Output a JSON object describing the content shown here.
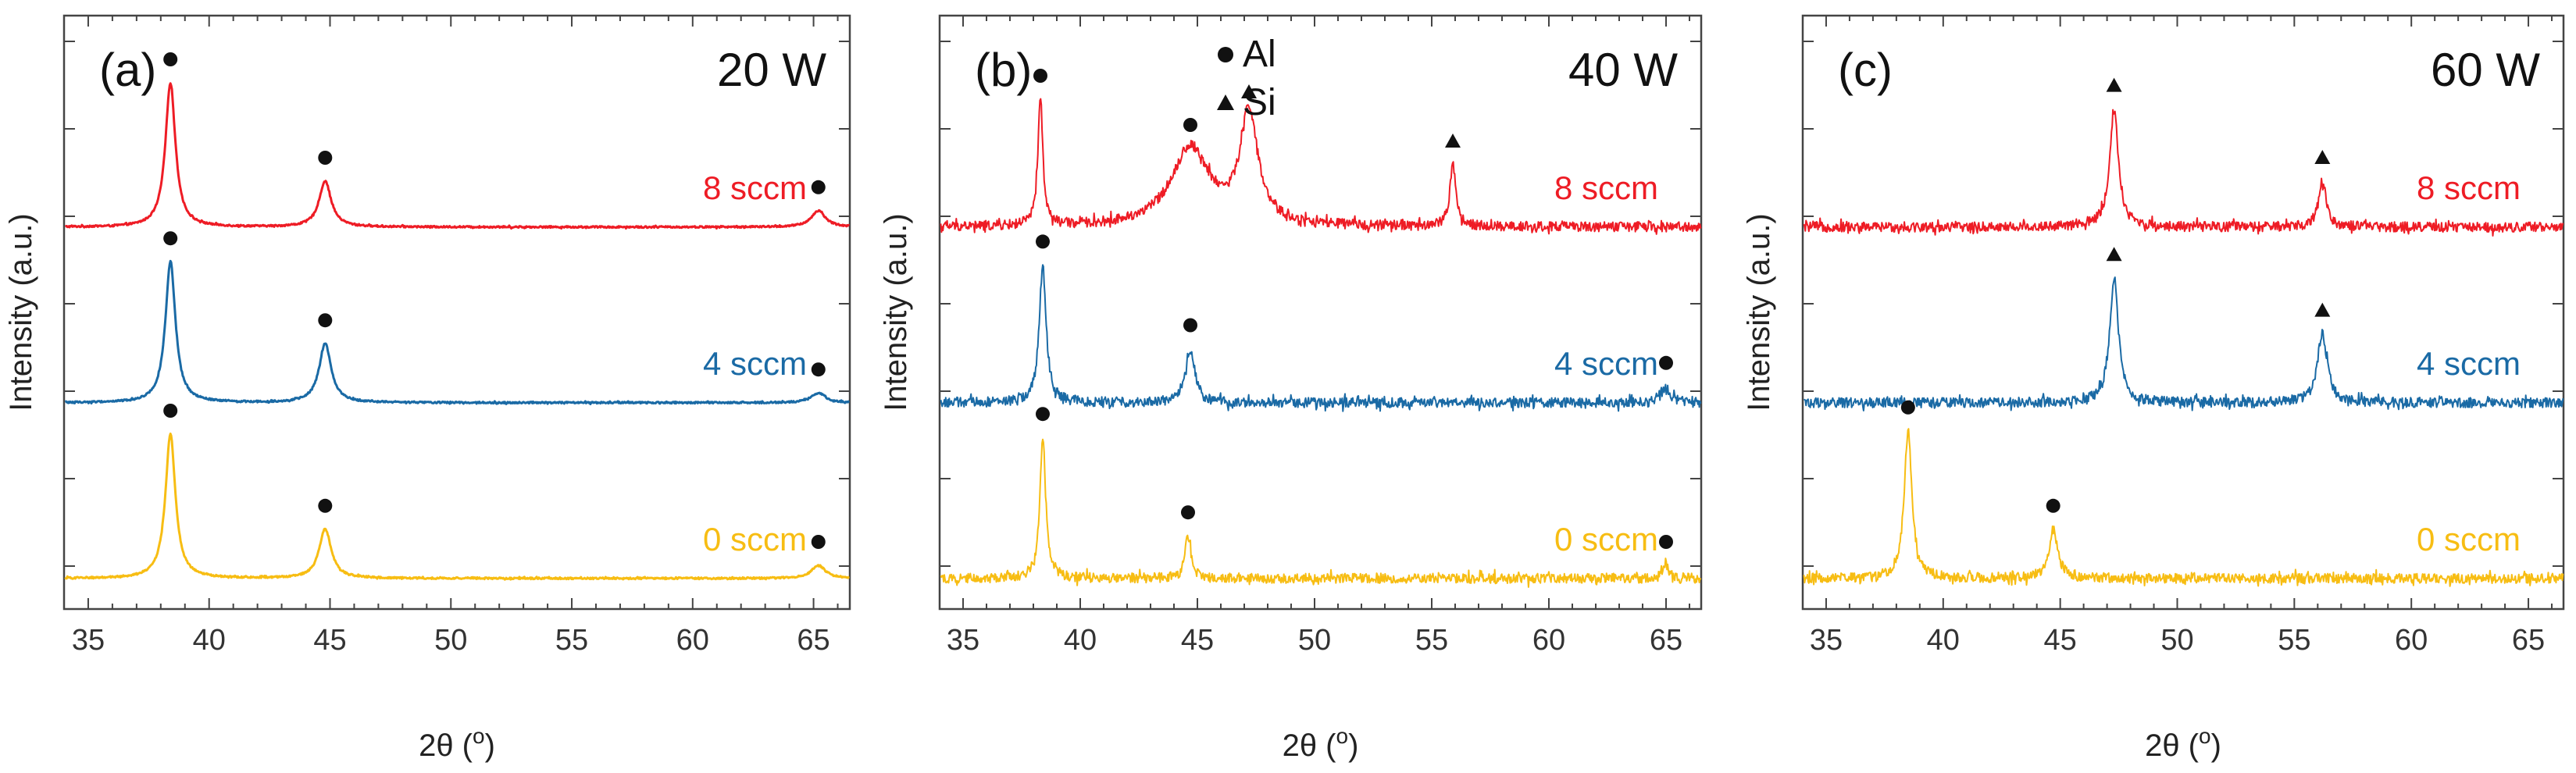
{
  "figure": {
    "x_label_prefix": "2θ (",
    "x_label_sup": "o",
    "x_label_suffix": ")",
    "y_label": "Intensity (a.u.)"
  },
  "legend": [
    {
      "symbol": "circle",
      "label": "Al"
    },
    {
      "symbol": "triangle",
      "label": "Si"
    }
  ],
  "colors": {
    "8 sccm": "#ee1c25",
    "4 sccm": "#1a6aa5",
    "0 sccm": "#f7bd13",
    "marker": "#111111",
    "frame": "#444444"
  },
  "chart_data": [
    {
      "type": "line",
      "panel_label": "(a)",
      "power": "20 W",
      "xlim": [
        34,
        66.5
      ],
      "xticks": [
        35,
        40,
        45,
        50,
        55,
        60,
        65
      ],
      "xlabel": "2θ (o)",
      "ylabel": "Intensity (a.u.)",
      "y_ticks": "unlabeled",
      "noise": "low",
      "series": [
        {
          "name": "8 sccm",
          "color": "#ee1c25",
          "offset": 2.0,
          "peaks": [
            {
              "x": 38.4,
              "height": 0.88,
              "width": 0.5,
              "phase": "Al"
            },
            {
              "x": 44.8,
              "height": 0.28,
              "width": 0.6,
              "phase": "Al"
            },
            {
              "x": 65.2,
              "height": 0.1,
              "width": 0.7,
              "phase": "Al"
            }
          ]
        },
        {
          "name": "4 sccm",
          "color": "#1a6aa5",
          "offset": 1.0,
          "peaks": [
            {
              "x": 38.4,
              "height": 0.86,
              "width": 0.5,
              "phase": "Al"
            },
            {
              "x": 44.8,
              "height": 0.36,
              "width": 0.6,
              "phase": "Al"
            },
            {
              "x": 65.2,
              "height": 0.06,
              "width": 0.7,
              "phase": "Al"
            }
          ]
        },
        {
          "name": "0 sccm",
          "color": "#f7bd13",
          "offset": 0.0,
          "peaks": [
            {
              "x": 38.4,
              "height": 0.88,
              "width": 0.5,
              "phase": "Al"
            },
            {
              "x": 44.8,
              "height": 0.3,
              "width": 0.6,
              "phase": "Al"
            },
            {
              "x": 65.2,
              "height": 0.08,
              "width": 0.7,
              "phase": "Al"
            }
          ]
        }
      ]
    },
    {
      "type": "line",
      "panel_label": "(b)",
      "power": "40 W",
      "xlim": [
        34,
        66.5
      ],
      "xticks": [
        35,
        40,
        45,
        50,
        55,
        60,
        65
      ],
      "xlabel": "2θ (o)",
      "ylabel": "Intensity (a.u.)",
      "y_ticks": "unlabeled",
      "noise": "high",
      "series": [
        {
          "name": "8 sccm",
          "color": "#ee1c25",
          "offset": 2.0,
          "peaks": [
            {
              "x": 38.3,
              "height": 0.78,
              "width": 0.25,
              "phase": "Al"
            },
            {
              "x": 44.7,
              "height": 0.48,
              "width": 2.0,
              "phase": "Al"
            },
            {
              "x": 47.2,
              "height": 0.68,
              "width": 0.9,
              "phase": "Si"
            },
            {
              "x": 55.9,
              "height": 0.38,
              "width": 0.3,
              "phase": "Si"
            }
          ]
        },
        {
          "name": "4 sccm",
          "color": "#1a6aa5",
          "offset": 1.0,
          "peaks": [
            {
              "x": 38.4,
              "height": 0.84,
              "width": 0.35,
              "phase": "Al"
            },
            {
              "x": 44.7,
              "height": 0.33,
              "width": 0.45,
              "phase": "Al"
            },
            {
              "x": 65.0,
              "height": 0.1,
              "width": 0.4,
              "phase": "Al"
            }
          ]
        },
        {
          "name": "0 sccm",
          "color": "#f7bd13",
          "offset": 0.0,
          "peaks": [
            {
              "x": 38.4,
              "height": 0.86,
              "width": 0.3,
              "phase": "Al"
            },
            {
              "x": 44.6,
              "height": 0.26,
              "width": 0.3,
              "phase": "Al"
            },
            {
              "x": 65.0,
              "height": 0.08,
              "width": 0.3,
              "phase": "Al"
            }
          ]
        }
      ]
    },
    {
      "type": "line",
      "panel_label": "(c)",
      "power": "60 W",
      "xlim": [
        34,
        66.5
      ],
      "xticks": [
        35,
        40,
        45,
        50,
        55,
        60,
        65
      ],
      "xlabel": "2θ (o)",
      "ylabel": "Intensity (a.u.)",
      "y_ticks": "unlabeled",
      "noise": "high",
      "series": [
        {
          "name": "8 sccm",
          "color": "#ee1c25",
          "offset": 2.0,
          "peaks": [
            {
              "x": 47.3,
              "height": 0.72,
              "width": 0.45,
              "phase": "Si"
            },
            {
              "x": 56.2,
              "height": 0.28,
              "width": 0.4,
              "phase": "Si"
            }
          ]
        },
        {
          "name": "4 sccm",
          "color": "#1a6aa5",
          "offset": 1.0,
          "peaks": [
            {
              "x": 47.3,
              "height": 0.76,
              "width": 0.45,
              "phase": "Si"
            },
            {
              "x": 56.2,
              "height": 0.42,
              "width": 0.5,
              "phase": "Si"
            }
          ]
        },
        {
          "name": "0 sccm",
          "color": "#f7bd13",
          "offset": 0.0,
          "peaks": [
            {
              "x": 38.5,
              "height": 0.9,
              "width": 0.4,
              "phase": "Al"
            },
            {
              "x": 44.7,
              "height": 0.3,
              "width": 0.45,
              "phase": "Al"
            }
          ]
        }
      ]
    }
  ]
}
